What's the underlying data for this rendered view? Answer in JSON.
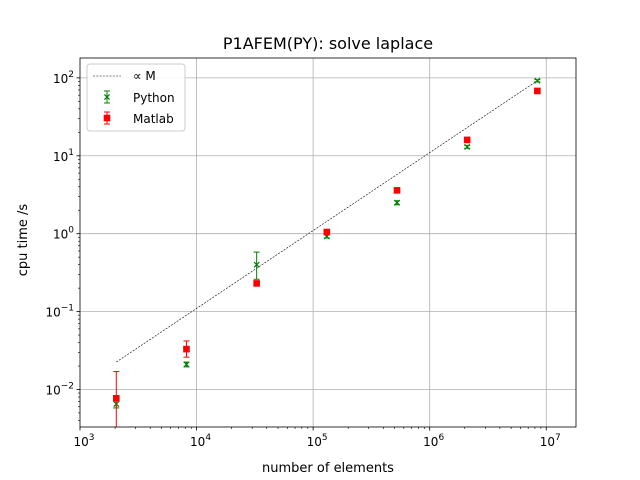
{
  "chart_data": {
    "type": "scatter",
    "title": "P1AFEM(PY): solve laplace",
    "xlabel": "number of elements",
    "ylabel": "cpu time /s",
    "xscale": "log",
    "yscale": "log",
    "xlim": [
      1000,
      18000000
    ],
    "ylim": [
      0.0033,
      180
    ],
    "xticks": [
      1000,
      10000,
      100000,
      1000000,
      10000000
    ],
    "xtick_labels": [
      {
        "base": "10",
        "exp": "3"
      },
      {
        "base": "10",
        "exp": "4"
      },
      {
        "base": "10",
        "exp": "5"
      },
      {
        "base": "10",
        "exp": "6"
      },
      {
        "base": "10",
        "exp": "7"
      }
    ],
    "yticks": [
      0.01,
      0.1,
      1,
      10,
      100
    ],
    "ytick_labels": [
      {
        "base": "10",
        "exp": "−2"
      },
      {
        "base": "10",
        "exp": "−1"
      },
      {
        "base": "10",
        "exp": "0"
      },
      {
        "base": "10",
        "exp": "1"
      },
      {
        "base": "10",
        "exp": "2"
      }
    ],
    "grid": true,
    "legend_position": "top-left",
    "reference_line": {
      "label": "∝ M",
      "x": [
        2048,
        8388608
      ],
      "y": [
        0.0225,
        92
      ],
      "color": "#000000",
      "style": "dashed"
    },
    "series": [
      {
        "name": "Python",
        "marker": "x",
        "color": "#008000",
        "x": [
          2048,
          8192,
          32768,
          131072,
          524288,
          2097152,
          8388608
        ],
        "y": [
          0.0065,
          0.021,
          0.4,
          0.92,
          2.5,
          13.0,
          92
        ],
        "yerr_low": [
          0.0058,
          0.0195,
          0.26,
          0.88,
          2.35,
          12.5,
          89
        ],
        "yerr_high": [
          0.0075,
          0.0225,
          0.58,
          0.97,
          2.65,
          13.6,
          95
        ]
      },
      {
        "name": "Matlab",
        "marker": "square",
        "color": "#ff0000",
        "x": [
          2048,
          8192,
          32768,
          131072,
          524288,
          2097152,
          8388608
        ],
        "y": [
          0.0077,
          0.033,
          0.23,
          1.05,
          3.6,
          16.0,
          68
        ],
        "yerr_low": [
          0.0033,
          0.026,
          0.22,
          1.0,
          3.5,
          15.5,
          66
        ],
        "yerr_high": [
          0.017,
          0.042,
          0.24,
          1.1,
          3.7,
          16.5,
          70
        ]
      }
    ]
  }
}
